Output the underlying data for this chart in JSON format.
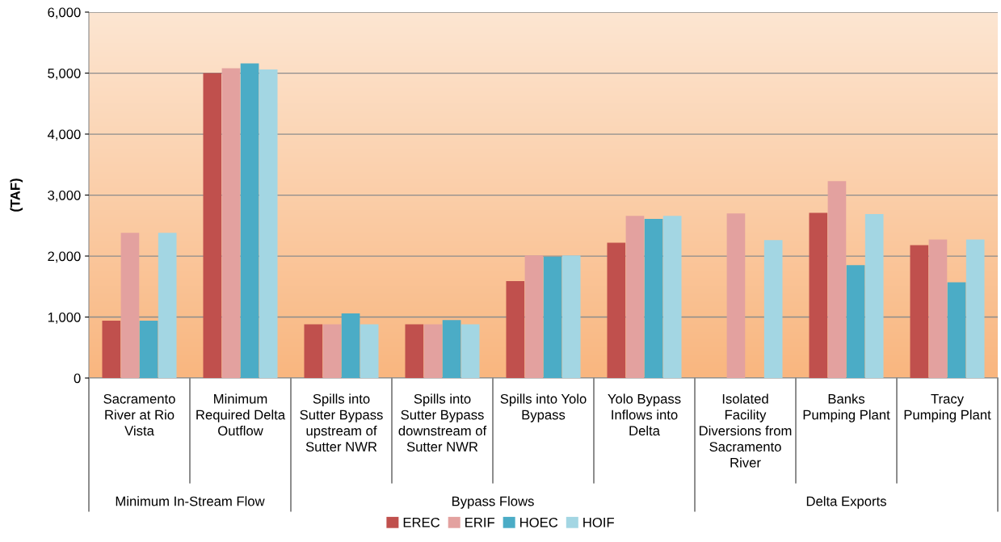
{
  "chart_data": {
    "type": "bar",
    "ylabel": "(TAF)",
    "categories": [
      "Sacramento\nRiver at Rio\nVista",
      "Minimum\nRequired Delta\nOutflow",
      "Spills into\nSutter Bypass\nupstream of\nSutter NWR",
      "Spills into\nSutter Bypass\ndownstream of\nSutter NWR",
      "Spills into Yolo\nBypass",
      "Yolo Bypass\nInflows into\nDelta",
      "Isolated\nFacility\nDiversions from\nSacramento\nRiver",
      "Banks\nPumping Plant",
      "Tracy\nPumping Plant"
    ],
    "series": [
      {
        "name": "EREC",
        "color": "#c0504d",
        "values": [
          940,
          5000,
          880,
          880,
          1590,
          2220,
          null,
          2710,
          2180
        ]
      },
      {
        "name": "ERIF",
        "color": "#e3a19f",
        "values": [
          2380,
          5080,
          880,
          880,
          2010,
          2660,
          2700,
          3230,
          2270
        ]
      },
      {
        "name": "HOEC",
        "color": "#4bacc6",
        "values": [
          940,
          5160,
          1060,
          950,
          1990,
          2610,
          null,
          1850,
          1570
        ]
      },
      {
        "name": "HOIF",
        "color": "#a3d6e3",
        "values": [
          2380,
          5060,
          880,
          880,
          2010,
          2660,
          2260,
          2690,
          2270
        ]
      }
    ],
    "annotations": [
      "Minimum In-Stream Flow",
      "Bypass Flows",
      "Delta Exports"
    ],
    "ylim": [
      0,
      6000
    ],
    "yticks": [
      0,
      {
        "value": 1000,
        "label": "1,000"
      },
      {
        "value": 2000,
        "label": "2,000"
      },
      {
        "value": 3000,
        "label": "3,000"
      },
      {
        "value": 4000,
        "label": "4,000"
      },
      {
        "value": 5000,
        "label": "5,000"
      },
      {
        "value": 6000,
        "label": "6,000"
      }
    ],
    "grid": "y",
    "legend": "bottom"
  }
}
